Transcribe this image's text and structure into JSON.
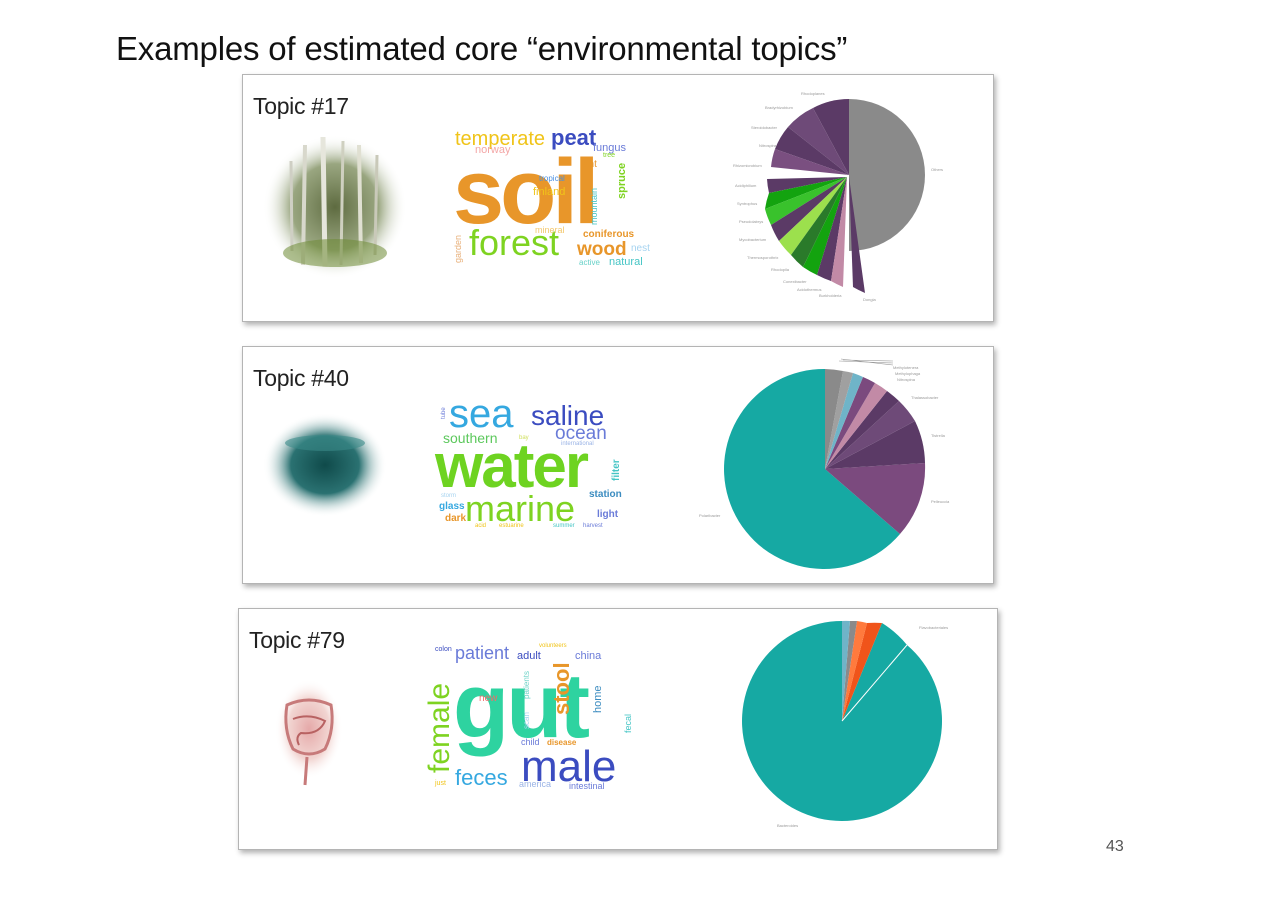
{
  "slide": {
    "title": "Examples of estimated core “environmental topics”",
    "page_number": "43"
  },
  "topics": [
    {
      "title": "Topic #17",
      "image_icon": "forest-photo",
      "words": [
        {
          "text": "soil",
          "color": "#e8962a"
        },
        {
          "text": "forest",
          "color": "#7ed321"
        },
        {
          "text": "temperate",
          "color": "#f0c419"
        },
        {
          "text": "peat",
          "color": "#3b4cc0"
        },
        {
          "text": "wood",
          "color": "#e8962a"
        },
        {
          "text": "coniferous",
          "color": "#e8962a"
        },
        {
          "text": "spruce",
          "color": "#7ed321"
        },
        {
          "text": "fungus",
          "color": "#6a7bd8"
        },
        {
          "text": "norway",
          "color": "#f3a6a6"
        },
        {
          "text": "finland",
          "color": "#f0c419"
        },
        {
          "text": "tropical",
          "color": "#4a90e2"
        },
        {
          "text": "mountain",
          "color": "#45c5c5"
        },
        {
          "text": "mineral",
          "color": "#f3c86e"
        },
        {
          "text": "garden",
          "color": "#e8b07a"
        },
        {
          "text": "nest",
          "color": "#a5d3f0"
        },
        {
          "text": "natural",
          "color": "#45c5c5"
        },
        {
          "text": "active",
          "color": "#67d1c8"
        },
        {
          "text": "tree",
          "color": "#7ed321"
        },
        {
          "text": "ant",
          "color": "#e8962a"
        }
      ],
      "pie_colors": [
        "#8a8a8a",
        "#5b3a66",
        "#7a4f80",
        "#c28aa6",
        "#13a30f",
        "#39c22c",
        "#9ce04d",
        "#d8f58a",
        "#2a7a2a"
      ],
      "pie_labels": [
        "Rhodoplanes",
        "Bradyrhizobium",
        "Steroidobacter",
        "Nitrospira",
        "Rhizomicrobium",
        "Acidiphilium",
        "Syntrophus",
        "Pseudolabrys",
        "Mycobacterium",
        "Thermosporothrix",
        "Rhodopila",
        "Conexibacter",
        "Acidothermus",
        "Burkholderia",
        "Dongia",
        "Others"
      ]
    },
    {
      "title": "Topic #40",
      "image_icon": "sea-photo",
      "words": [
        {
          "text": "water",
          "color": "#6ed321"
        },
        {
          "text": "sea",
          "color": "#35a8e0"
        },
        {
          "text": "saline",
          "color": "#3b4cc0"
        },
        {
          "text": "ocean",
          "color": "#6a7bd8"
        },
        {
          "text": "marine",
          "color": "#7ed321"
        },
        {
          "text": "southern",
          "color": "#5cc85c"
        },
        {
          "text": "station",
          "color": "#3b8cc0"
        },
        {
          "text": "glass",
          "color": "#35a8e0"
        },
        {
          "text": "dark",
          "color": "#e8962a"
        },
        {
          "text": "light",
          "color": "#6a7bd8"
        },
        {
          "text": "filter",
          "color": "#45c5c5"
        },
        {
          "text": "international",
          "color": "#9bb4e6"
        },
        {
          "text": "storm",
          "color": "#a5d3f0"
        },
        {
          "text": "estuarine",
          "color": "#f0c419"
        },
        {
          "text": "harvest",
          "color": "#6a7bd8"
        },
        {
          "text": "summer",
          "color": "#45c5c5"
        },
        {
          "text": "bay",
          "color": "#d0e060"
        },
        {
          "text": "tube",
          "color": "#6a7bd8"
        },
        {
          "text": "acid",
          "color": "#f0c419"
        }
      ],
      "pie_colors": [
        "#16a9a3",
        "#7b4a7e",
        "#5b3a66",
        "#6e4a78",
        "#c28aa6",
        "#8a8a8a",
        "#6fb4c8",
        "#a0a0a0"
      ],
      "pie_labels": [
        "Polaribacter",
        "Pelleuccia",
        "Tistrella",
        "Thalassobacter",
        "Nitrospina",
        "Methylophaga",
        "Methylotenera",
        "Others"
      ]
    },
    {
      "title": "Topic #79",
      "image_icon": "intestine-photo",
      "words": [
        {
          "text": "gut",
          "color": "#2ed3a0"
        },
        {
          "text": "male",
          "color": "#3b4cc0"
        },
        {
          "text": "female",
          "color": "#7ed321"
        },
        {
          "text": "feces",
          "color": "#35a8e0"
        },
        {
          "text": "stool",
          "color": "#e8962a"
        },
        {
          "text": "patient",
          "color": "#6a7bd8"
        },
        {
          "text": "adult",
          "color": "#3b4cc0"
        },
        {
          "text": "china",
          "color": "#6a7bd8"
        },
        {
          "text": "home",
          "color": "#3b8cc0"
        },
        {
          "text": "fecal",
          "color": "#45c5c5"
        },
        {
          "text": "new",
          "color": "#f36b6b"
        },
        {
          "text": "child",
          "color": "#6a7bd8"
        },
        {
          "text": "disease",
          "color": "#e8962a"
        },
        {
          "text": "america",
          "color": "#9bb4e6"
        },
        {
          "text": "intestinal",
          "color": "#6a7bd8"
        },
        {
          "text": "scan",
          "color": "#a5d3f0"
        },
        {
          "text": "colon",
          "color": "#3b4cc0"
        },
        {
          "text": "volunteers",
          "color": "#f0c419"
        },
        {
          "text": "just",
          "color": "#f0c419"
        },
        {
          "text": "patients",
          "color": "#6fd3c8"
        }
      ],
      "pie_colors": [
        "#16a9a3",
        "#f0541a",
        "#ff7a3d",
        "#8a8a8a",
        "#6fb4c8"
      ],
      "pie_labels": [
        "Flavobacteriales",
        "Bacteroides"
      ]
    }
  ]
}
